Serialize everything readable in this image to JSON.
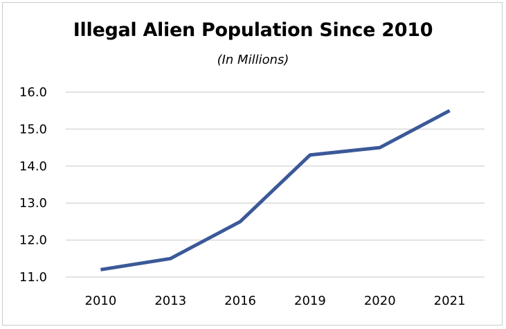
{
  "chart_data": {
    "type": "line",
    "title": "Illegal Alien Population Since 2010",
    "subtitle": "(In Millions)",
    "categories": [
      "2010",
      "2013",
      "2016",
      "2019",
      "2020",
      "2021"
    ],
    "series": [
      {
        "values": [
          11.2,
          11.5,
          12.5,
          14.3,
          14.5,
          15.5
        ]
      }
    ],
    "y_ticks": [
      "11.0",
      "12.0",
      "13.0",
      "14.0",
      "15.0",
      "16.0"
    ],
    "ylim": [
      11.0,
      16.0
    ],
    "grid": true,
    "legend": "none",
    "line_color": "#3b5998",
    "grid_color": "#d9d9d9"
  }
}
